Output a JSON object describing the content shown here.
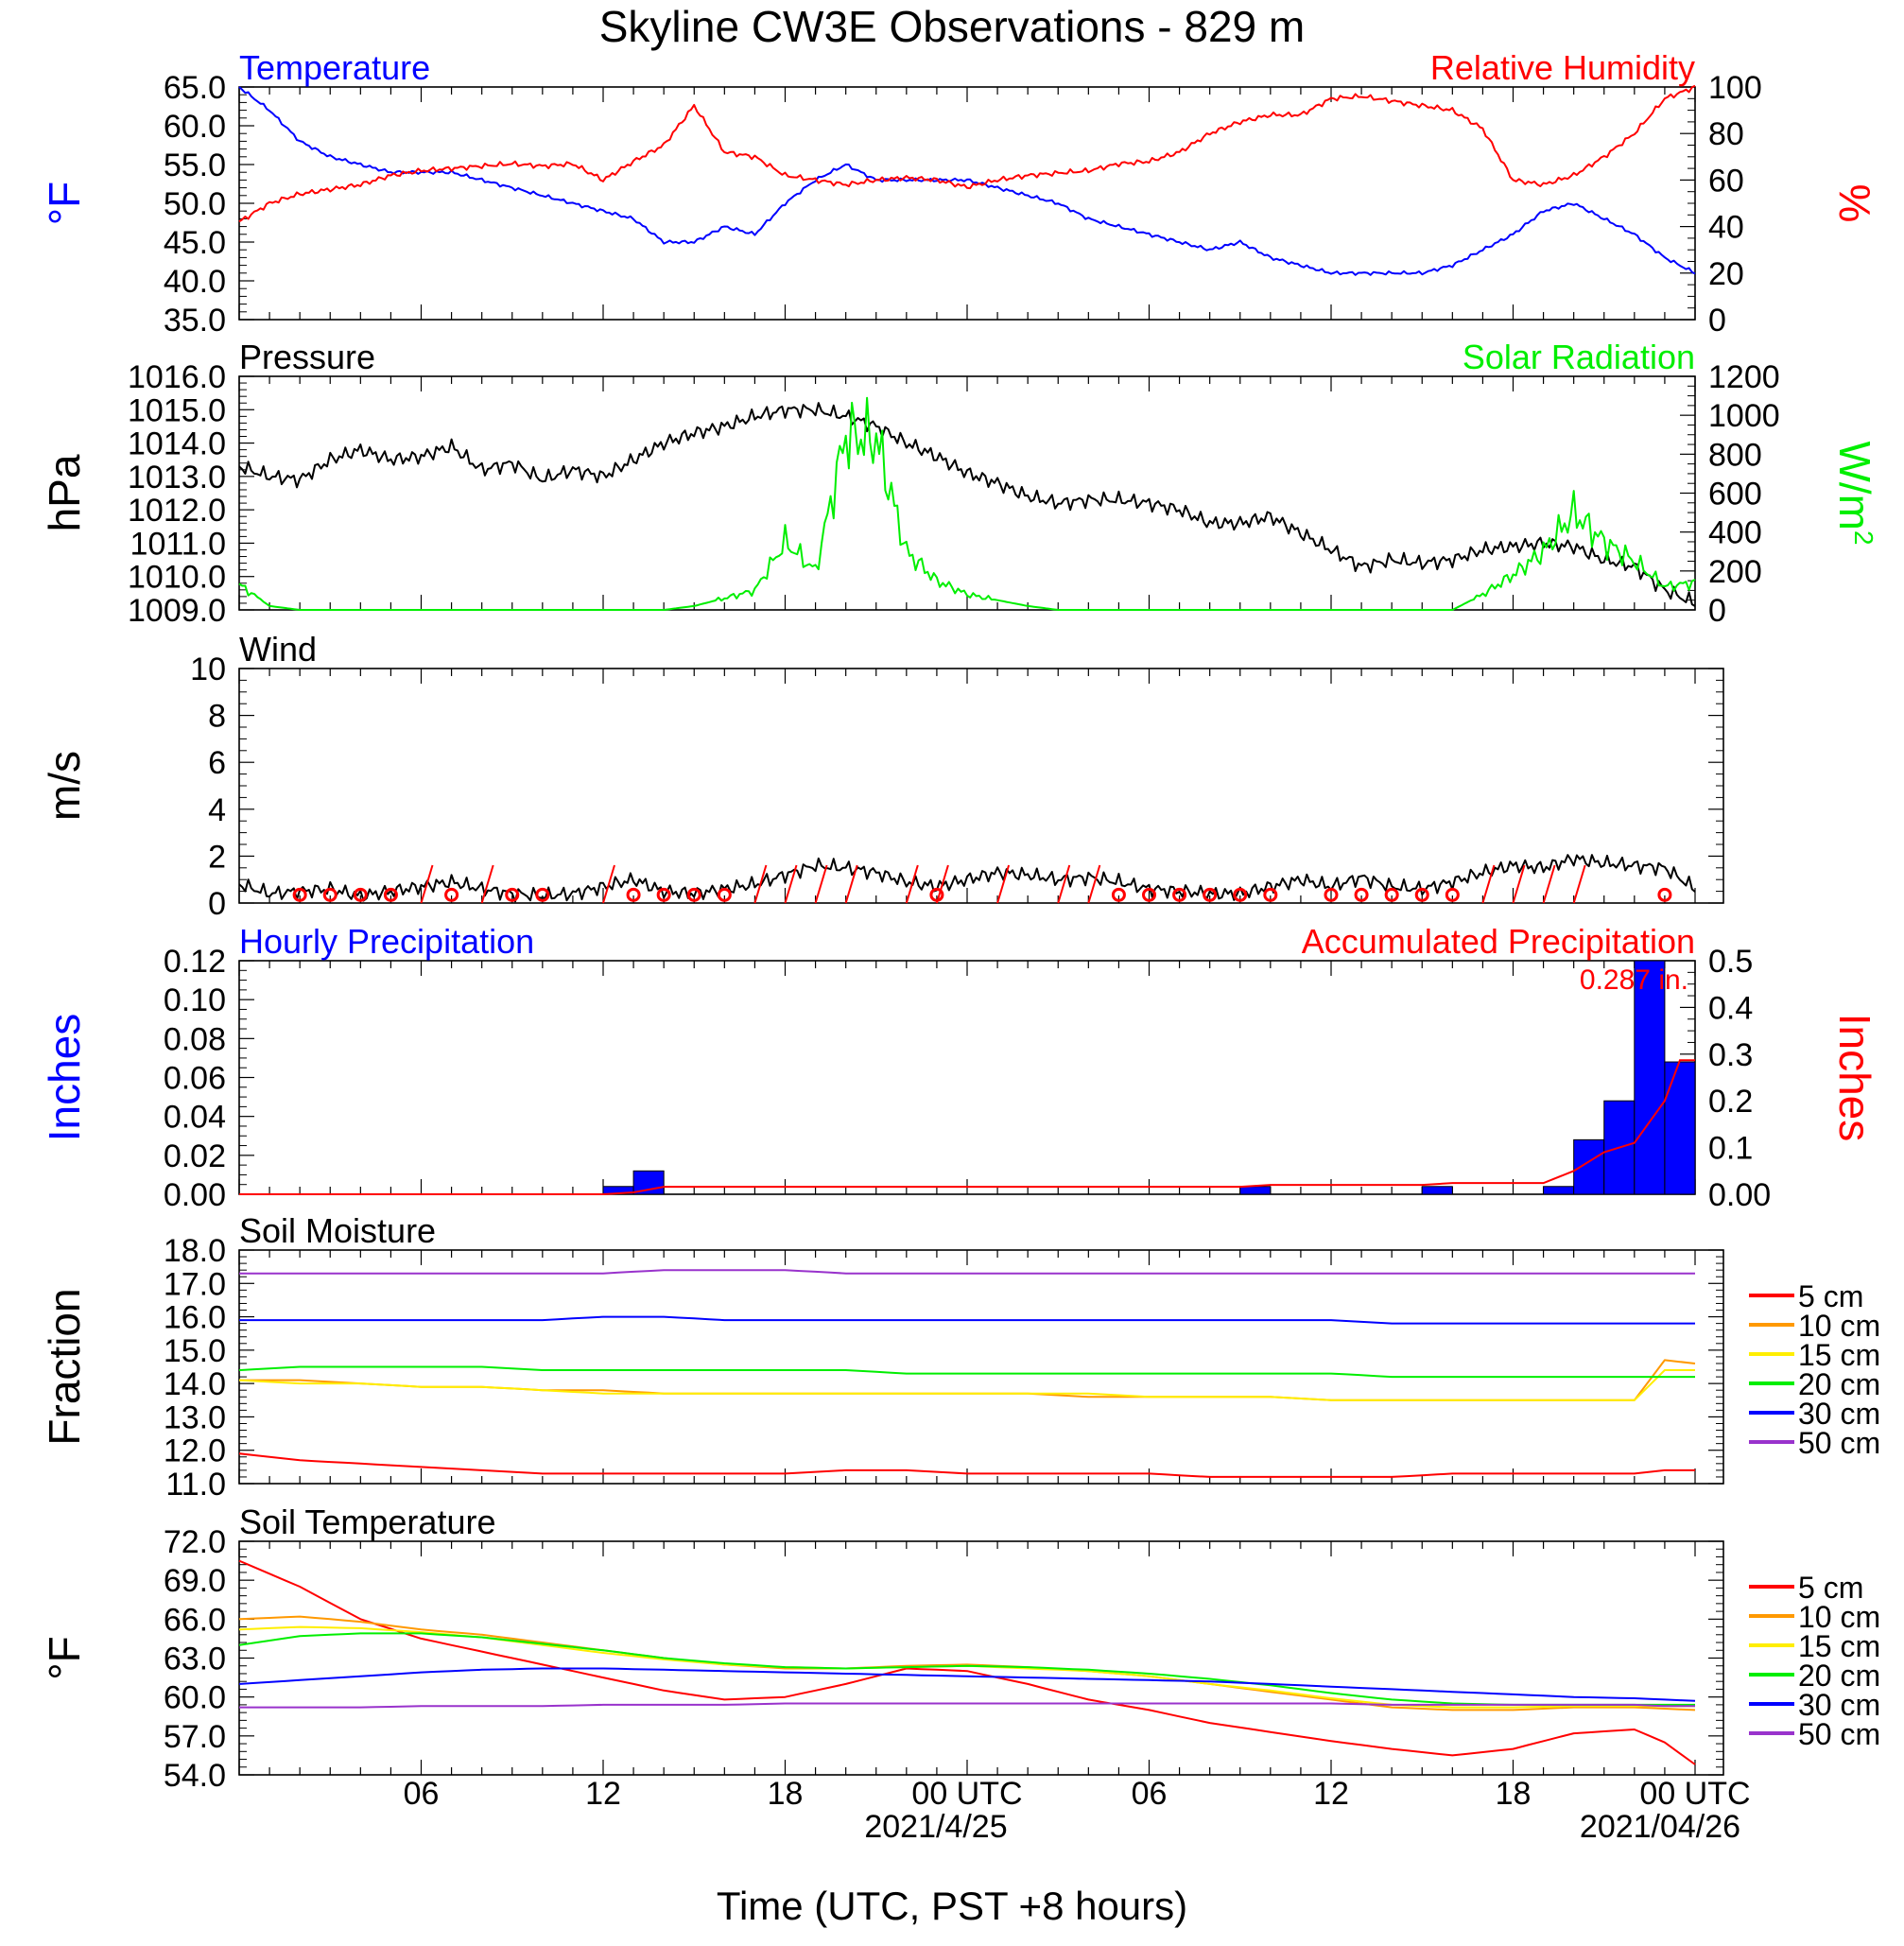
{
  "title": "Skyline CW3E Observations - 829 m",
  "xaxis": {
    "label": "Time (UTC, PST +8 hours)",
    "date1": "2021/4/25",
    "date2": "2021/04/26"
  },
  "legend_labels": [
    "5 cm",
    "10 cm",
    "15 cm",
    "20 cm",
    "30 cm",
    "50 cm"
  ],
  "colors": {
    "red": "#ff0000",
    "blue": "#0000ff",
    "green": "#00ee00",
    "black": "#000000",
    "orange": "#ff9900",
    "yellow": "#ffee00",
    "purple": "#9933cc"
  },
  "chart_data": [
    {
      "id": "temp_rh",
      "type": "line",
      "title_left": "Temperature",
      "title_right": "Relative Humidity",
      "ylabel_left": "°F",
      "ylabel_right": "%",
      "ylim_left": [
        35,
        65
      ],
      "yticks_left": [
        "65.0",
        "60.0",
        "55.0",
        "50.0",
        "45.0",
        "40.0",
        "35.0"
      ],
      "ylim_right": [
        0,
        100
      ],
      "yticks_right": [
        "100",
        "80",
        "60",
        "40",
        "20",
        "0"
      ],
      "x_hours": [
        0,
        1,
        2,
        3,
        4,
        5,
        6,
        7,
        8,
        9,
        10,
        11,
        12,
        13,
        14,
        15,
        16,
        17,
        18,
        19,
        20,
        21,
        22,
        23,
        24,
        25,
        26,
        27,
        28,
        29,
        30,
        31,
        32,
        33,
        34,
        35,
        36,
        37,
        38,
        39,
        40,
        41,
        42,
        43,
        44,
        45,
        46,
        47,
        48
      ],
      "series": [
        {
          "name": "Temperature",
          "axis": "left",
          "color": "blue",
          "values": [
            65,
            62,
            58,
            56,
            55,
            54,
            54,
            54,
            53,
            52,
            51,
            50,
            49,
            48,
            45,
            45,
            47,
            46,
            50,
            53,
            55,
            53,
            53,
            53,
            53,
            52,
            51,
            50,
            48,
            47,
            46,
            45,
            44,
            45,
            43,
            42,
            41,
            41,
            41,
            41,
            42,
            44,
            46,
            49,
            50,
            48,
            46,
            43,
            41
          ]
        },
        {
          "name": "Relative Humidity",
          "axis": "right",
          "color": "red",
          "values": [
            42,
            50,
            54,
            56,
            58,
            62,
            64,
            65,
            66,
            67,
            66,
            67,
            60,
            68,
            75,
            92,
            72,
            70,
            62,
            60,
            58,
            60,
            61,
            60,
            57,
            60,
            62,
            63,
            64,
            67,
            68,
            72,
            80,
            85,
            88,
            88,
            95,
            96,
            94,
            92,
            90,
            82,
            60,
            58,
            62,
            70,
            80,
            95,
            100
          ]
        }
      ]
    },
    {
      "id": "press_solar",
      "type": "line",
      "title_left": "Pressure",
      "title_right": "Solar Radiation",
      "ylabel_left": "hPa",
      "ylabel_right": "W/m",
      "ylabel_right_sup": "2",
      "ylim_left": [
        1009,
        1016
      ],
      "yticks_left": [
        "1016.0",
        "1015.0",
        "1014.0",
        "1013.0",
        "1012.0",
        "1011.0",
        "1010.0",
        "1009.0"
      ],
      "ylim_right": [
        0,
        1200
      ],
      "yticks_right": [
        "1200",
        "1000",
        "800",
        "600",
        "400",
        "200",
        "0"
      ],
      "x_hours": [
        0,
        1,
        2,
        3,
        4,
        5,
        6,
        7,
        8,
        9,
        10,
        11,
        12,
        13,
        14,
        15,
        16,
        17,
        18,
        19,
        20,
        21,
        22,
        23,
        24,
        25,
        26,
        27,
        28,
        29,
        30,
        31,
        32,
        33,
        34,
        35,
        36,
        37,
        38,
        39,
        40,
        41,
        42,
        43,
        44,
        45,
        46,
        47,
        48
      ],
      "series": [
        {
          "name": "Pressure",
          "axis": "left",
          "color": "black",
          "values": [
            1013.3,
            1013.0,
            1012.9,
            1013.5,
            1013.8,
            1013.5,
            1013.6,
            1013.9,
            1013.2,
            1013.4,
            1012.9,
            1013.2,
            1013.0,
            1013.5,
            1014.0,
            1014.3,
            1014.5,
            1014.8,
            1015.0,
            1015.0,
            1014.8,
            1014.5,
            1014.0,
            1013.6,
            1013.1,
            1012.8,
            1012.4,
            1012.2,
            1012.3,
            1012.3,
            1012.2,
            1012.0,
            1011.6,
            1011.6,
            1011.8,
            1011.3,
            1010.8,
            1010.3,
            1010.5,
            1010.4,
            1010.5,
            1010.8,
            1010.9,
            1011.0,
            1010.9,
            1010.5,
            1010.3,
            1009.6,
            1009.2
          ]
        },
        {
          "name": "Solar Radiation",
          "axis": "right",
          "color": "green",
          "values": [
            130,
            20,
            0,
            0,
            0,
            0,
            0,
            0,
            0,
            0,
            0,
            0,
            0,
            0,
            0,
            20,
            60,
            100,
            350,
            200,
            900,
            880,
            300,
            150,
            80,
            50,
            20,
            0,
            0,
            0,
            0,
            0,
            0,
            0,
            0,
            0,
            0,
            0,
            0,
            0,
            0,
            80,
            180,
            300,
            500,
            350,
            250,
            120,
            140
          ]
        }
      ]
    },
    {
      "id": "wind",
      "type": "line",
      "title_left": "Wind",
      "ylabel_left": "m/s",
      "ylim_left": [
        0,
        10
      ],
      "yticks_left": [
        "10",
        "8",
        "6",
        "4",
        "2",
        "0"
      ],
      "x_hours": [
        0,
        1,
        2,
        3,
        4,
        5,
        6,
        7,
        8,
        9,
        10,
        11,
        12,
        13,
        14,
        15,
        16,
        17,
        18,
        19,
        20,
        21,
        22,
        23,
        24,
        25,
        26,
        27,
        28,
        29,
        30,
        31,
        32,
        33,
        34,
        35,
        36,
        37,
        38,
        39,
        40,
        41,
        42,
        43,
        44,
        45,
        46,
        47,
        48
      ],
      "series": [
        {
          "name": "Wind speed",
          "axis": "left",
          "color": "black",
          "values": [
            0.8,
            0.4,
            0.5,
            0.6,
            0.3,
            0.5,
            0.7,
            0.9,
            0.6,
            0.4,
            0.3,
            0.4,
            0.7,
            1.0,
            0.5,
            0.4,
            0.6,
            0.8,
            1.2,
            1.6,
            1.5,
            1.3,
            0.9,
            0.7,
            1.0,
            1.3,
            1.2,
            1.0,
            1.1,
            0.9,
            0.6,
            0.5,
            0.4,
            0.4,
            0.7,
            1.0,
            0.7,
            1.1,
            0.7,
            0.6,
            0.9,
            1.3,
            1.6,
            1.5,
            1.9,
            1.7,
            1.6,
            1.5,
            0.6
          ]
        }
      ],
      "circle_hours": [
        2,
        3,
        4,
        5,
        7,
        9,
        10,
        13,
        14,
        15,
        16,
        23,
        29,
        30,
        31,
        32,
        33,
        34,
        36,
        37,
        38,
        39,
        40,
        47
      ]
    },
    {
      "id": "precip",
      "type": "bar",
      "title_left": "Hourly Precipitation",
      "title_right": "Accumulated Precipitation",
      "ylabel_left": "Inches",
      "ylabel_right": "Inches",
      "ylim_left": [
        0,
        0.12
      ],
      "yticks_left": [
        "0.12",
        "0.10",
        "0.08",
        "0.06",
        "0.04",
        "0.02",
        "0.00"
      ],
      "ylim_right": [
        0,
        0.5
      ],
      "yticks_right": [
        "0.5",
        "0.4",
        "0.3",
        "0.2",
        "0.1",
        "0.00"
      ],
      "annotation": "0.287 in.",
      "bars": [
        {
          "hour": 12,
          "value": 0.004
        },
        {
          "hour": 13,
          "value": 0.012
        },
        {
          "hour": 33,
          "value": 0.004
        },
        {
          "hour": 39,
          "value": 0.004
        },
        {
          "hour": 43,
          "value": 0.004
        },
        {
          "hour": 44,
          "value": 0.028
        },
        {
          "hour": 45,
          "value": 0.048
        },
        {
          "hour": 46,
          "value": 0.12
        },
        {
          "hour": 47,
          "value": 0.068
        }
      ],
      "accum_hours": [
        0,
        12,
        13,
        14,
        33,
        34,
        39,
        40,
        43,
        44,
        45,
        46,
        47,
        47.5,
        48
      ],
      "accum_values": [
        0,
        0,
        0.004,
        0.016,
        0.016,
        0.02,
        0.02,
        0.024,
        0.024,
        0.05,
        0.09,
        0.11,
        0.2,
        0.287,
        0.287
      ]
    },
    {
      "id": "soil_moist",
      "type": "line",
      "title_left": "Soil Moisture",
      "ylabel_left": "Fraction",
      "ylim_left": [
        11,
        18
      ],
      "yticks_left": [
        "18.0",
        "17.0",
        "16.0",
        "15.0",
        "14.0",
        "13.0",
        "12.0",
        "11.0"
      ],
      "x_hours": [
        0,
        2,
        4,
        6,
        8,
        10,
        12,
        14,
        16,
        18,
        20,
        22,
        24,
        26,
        28,
        30,
        32,
        34,
        36,
        38,
        40,
        42,
        44,
        46,
        47,
        48
      ],
      "series": [
        {
          "name": "5 cm",
          "color": "red",
          "values": [
            11.9,
            11.7,
            11.6,
            11.5,
            11.4,
            11.3,
            11.3,
            11.3,
            11.3,
            11.3,
            11.4,
            11.4,
            11.3,
            11.3,
            11.3,
            11.3,
            11.2,
            11.2,
            11.2,
            11.2,
            11.3,
            11.3,
            11.3,
            11.3,
            11.4,
            11.4
          ]
        },
        {
          "name": "10 cm",
          "color": "orange",
          "values": [
            14.1,
            14.1,
            14.0,
            13.9,
            13.9,
            13.8,
            13.8,
            13.7,
            13.7,
            13.7,
            13.7,
            13.7,
            13.7,
            13.7,
            13.6,
            13.6,
            13.6,
            13.6,
            13.5,
            13.5,
            13.5,
            13.5,
            13.5,
            13.5,
            14.7,
            14.6
          ]
        },
        {
          "name": "15 cm",
          "color": "yellow",
          "values": [
            14.1,
            14.0,
            14.0,
            13.9,
            13.9,
            13.8,
            13.7,
            13.7,
            13.7,
            13.7,
            13.7,
            13.7,
            13.7,
            13.7,
            13.7,
            13.6,
            13.6,
            13.6,
            13.5,
            13.5,
            13.5,
            13.5,
            13.5,
            13.5,
            14.4,
            14.4
          ]
        },
        {
          "name": "20 cm",
          "color": "green",
          "values": [
            14.4,
            14.5,
            14.5,
            14.5,
            14.5,
            14.4,
            14.4,
            14.4,
            14.4,
            14.4,
            14.4,
            14.3,
            14.3,
            14.3,
            14.3,
            14.3,
            14.3,
            14.3,
            14.3,
            14.2,
            14.2,
            14.2,
            14.2,
            14.2,
            14.2,
            14.2
          ]
        },
        {
          "name": "30 cm",
          "color": "blue",
          "values": [
            15.9,
            15.9,
            15.9,
            15.9,
            15.9,
            15.9,
            16.0,
            16.0,
            15.9,
            15.9,
            15.9,
            15.9,
            15.9,
            15.9,
            15.9,
            15.9,
            15.9,
            15.9,
            15.9,
            15.8,
            15.8,
            15.8,
            15.8,
            15.8,
            15.8,
            15.8
          ]
        },
        {
          "name": "50 cm",
          "color": "purple",
          "values": [
            17.3,
            17.3,
            17.3,
            17.3,
            17.3,
            17.3,
            17.3,
            17.4,
            17.4,
            17.4,
            17.3,
            17.3,
            17.3,
            17.3,
            17.3,
            17.3,
            17.3,
            17.3,
            17.3,
            17.3,
            17.3,
            17.3,
            17.3,
            17.3,
            17.3,
            17.3
          ]
        }
      ]
    },
    {
      "id": "soil_temp",
      "type": "line",
      "title_left": "Soil Temperature",
      "ylabel_left": "°F",
      "ylim_left": [
        54,
        72
      ],
      "yticks_left": [
        "72.0",
        "69.0",
        "66.0",
        "63.0",
        "60.0",
        "57.0",
        "54.0"
      ],
      "x_hours": [
        0,
        2,
        4,
        6,
        8,
        10,
        12,
        14,
        16,
        18,
        20,
        22,
        24,
        26,
        28,
        30,
        32,
        34,
        36,
        38,
        40,
        42,
        44,
        46,
        47,
        48
      ],
      "series": [
        {
          "name": "5 cm",
          "color": "red",
          "values": [
            70.5,
            68.5,
            66.0,
            64.5,
            63.5,
            62.5,
            61.5,
            60.5,
            59.8,
            60.0,
            61.0,
            62.2,
            62.0,
            61.0,
            59.8,
            59.0,
            58.0,
            57.3,
            56.6,
            56.0,
            55.5,
            56.0,
            57.2,
            57.5,
            56.5,
            54.8
          ]
        },
        {
          "name": "10 cm",
          "color": "orange",
          "values": [
            66.0,
            66.2,
            65.8,
            65.2,
            64.8,
            64.2,
            63.6,
            63.0,
            62.5,
            62.2,
            62.2,
            62.4,
            62.5,
            62.3,
            62.0,
            61.6,
            61.0,
            60.4,
            59.8,
            59.2,
            59.0,
            59.0,
            59.2,
            59.2,
            59.1,
            59.0
          ]
        },
        {
          "name": "15 cm",
          "color": "yellow",
          "values": [
            65.2,
            65.4,
            65.3,
            65.0,
            64.6,
            64.0,
            63.4,
            62.9,
            62.5,
            62.3,
            62.2,
            62.3,
            62.4,
            62.2,
            62.0,
            61.6,
            61.0,
            60.5,
            59.9,
            59.4,
            59.2,
            59.2,
            59.3,
            59.3,
            59.3,
            59.3
          ]
        },
        {
          "name": "20 cm",
          "color": "green",
          "values": [
            64.0,
            64.7,
            64.9,
            64.9,
            64.6,
            64.1,
            63.6,
            63.0,
            62.6,
            62.3,
            62.2,
            62.3,
            62.4,
            62.3,
            62.1,
            61.8,
            61.4,
            60.9,
            60.3,
            59.8,
            59.5,
            59.4,
            59.4,
            59.4,
            59.4,
            59.4
          ]
        },
        {
          "name": "30 cm",
          "color": "blue",
          "values": [
            61.0,
            61.3,
            61.6,
            61.9,
            62.1,
            62.2,
            62.2,
            62.1,
            62.0,
            61.9,
            61.8,
            61.7,
            61.6,
            61.5,
            61.4,
            61.3,
            61.2,
            61.0,
            60.8,
            60.6,
            60.4,
            60.2,
            60.0,
            59.9,
            59.8,
            59.7
          ]
        },
        {
          "name": "50 cm",
          "color": "purple",
          "values": [
            59.2,
            59.2,
            59.2,
            59.3,
            59.3,
            59.3,
            59.4,
            59.4,
            59.4,
            59.5,
            59.5,
            59.5,
            59.5,
            59.5,
            59.5,
            59.5,
            59.5,
            59.5,
            59.5,
            59.4,
            59.4,
            59.4,
            59.4,
            59.4,
            59.3,
            59.3
          ]
        }
      ]
    }
  ],
  "xticks": [
    "06",
    "12",
    "18",
    "00 UTC",
    "06",
    "12",
    "18",
    "00 UTC"
  ]
}
